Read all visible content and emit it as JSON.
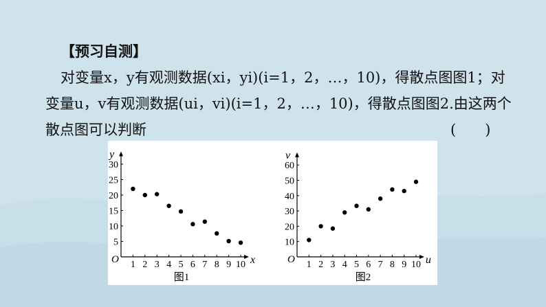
{
  "heading": "【预习自测】",
  "line1": "对变量x，y有观测数据(xi，yi)(i=1，2，…，10)，得散点图图1；对",
  "line2": "变量u，v有观测数据(ui，vi)(i=1，2，…，10)，得散点图图2.由这两个",
  "line3": "散点图可以判断",
  "answer_paren": "(　　)",
  "chart_data": [
    {
      "type": "scatter",
      "title": "",
      "caption": "图1",
      "xlabel": "x",
      "ylabel": "y",
      "origin_label": "O",
      "xlim": [
        0,
        10.4
      ],
      "ylim": [
        0,
        33
      ],
      "xticks": [
        1,
        2,
        3,
        4,
        5,
        6,
        7,
        8,
        9,
        10
      ],
      "yticks": [
        5,
        10,
        15,
        20,
        25,
        30
      ],
      "x": [
        1,
        2,
        3,
        4,
        5,
        6,
        7,
        8,
        9,
        10
      ],
      "y": [
        22,
        20,
        20.3,
        16.5,
        14.7,
        10.6,
        11.4,
        7.6,
        5.1,
        4.6
      ]
    },
    {
      "type": "scatter",
      "title": "",
      "caption": "图2",
      "xlabel": "u",
      "ylabel": "v",
      "origin_label": "O",
      "xlim": [
        0,
        10.4
      ],
      "ylim": [
        0,
        66
      ],
      "xticks": [
        1,
        2,
        3,
        4,
        5,
        6,
        7,
        8,
        9,
        10
      ],
      "yticks": [
        10,
        20,
        30,
        40,
        50,
        60
      ],
      "x": [
        1,
        2,
        3,
        4,
        5,
        6,
        7,
        8,
        9,
        10
      ],
      "y": [
        11,
        20,
        18.5,
        29,
        33.3,
        31,
        38,
        44,
        43,
        49
      ]
    }
  ]
}
